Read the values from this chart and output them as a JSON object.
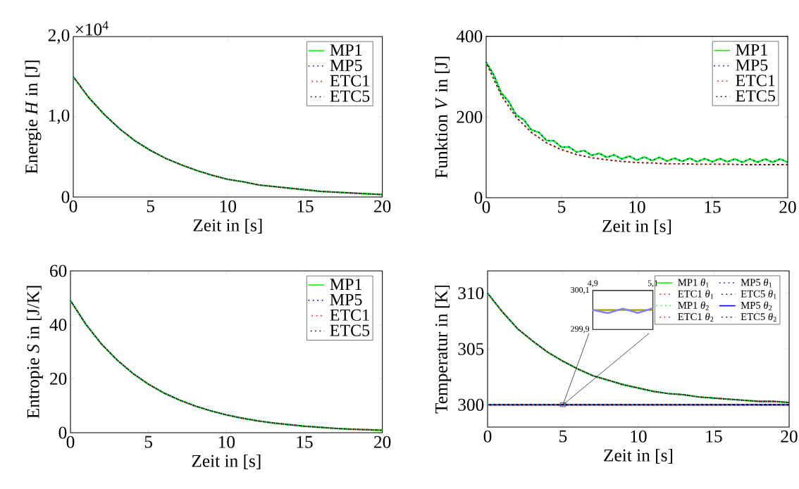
{
  "chart_data": [
    {
      "type": "line",
      "xlabel": "Zeit in [s]",
      "ylabel": "Energie *H* in [J]",
      "annotations": [
        "×10$^{4}$"
      ],
      "x": [
        0,
        1,
        2,
        3,
        4,
        5,
        6,
        7,
        8,
        9,
        10,
        11,
        12,
        13,
        14,
        15,
        16,
        17,
        18,
        19,
        20
      ],
      "xlim": [
        0,
        20
      ],
      "xticks": [
        0,
        5,
        10,
        15,
        20
      ],
      "ylim": [
        0,
        2
      ],
      "yticks": [
        0,
        {
          "value": 1,
          "label": "1,0"
        },
        {
          "value": 2,
          "label": "2,0"
        }
      ],
      "legend": "top right",
      "series": [
        {
          "name": "MP1",
          "color": "#00ff00",
          "line_style": "solid",
          "values": [
            1.5,
            1.24,
            1.03,
            0.85,
            0.7,
            0.58,
            0.48,
            0.4,
            0.33,
            0.27,
            0.22,
            0.19,
            0.15,
            0.13,
            0.11,
            0.09,
            0.07,
            0.06,
            0.05,
            0.04,
            0.03
          ]
        },
        {
          "name": "MP5",
          "color": "#0000ff",
          "line_style": "dotted",
          "values": [
            1.5,
            1.24,
            1.03,
            0.85,
            0.7,
            0.58,
            0.48,
            0.4,
            0.33,
            0.27,
            0.22,
            0.19,
            0.15,
            0.13,
            0.11,
            0.09,
            0.07,
            0.06,
            0.05,
            0.04,
            0.03
          ]
        },
        {
          "name": "ETC1",
          "color": "#ff0000",
          "line_style": "dotted",
          "values": [
            1.5,
            1.24,
            1.03,
            0.85,
            0.7,
            0.58,
            0.48,
            0.4,
            0.33,
            0.27,
            0.22,
            0.19,
            0.15,
            0.13,
            0.11,
            0.09,
            0.07,
            0.06,
            0.05,
            0.04,
            0.03
          ]
        },
        {
          "name": "ETC5",
          "color": "#000000",
          "line_style": "dotted",
          "values": [
            1.5,
            1.24,
            1.03,
            0.85,
            0.7,
            0.58,
            0.48,
            0.4,
            0.33,
            0.27,
            0.22,
            0.19,
            0.15,
            0.13,
            0.11,
            0.09,
            0.07,
            0.06,
            0.05,
            0.04,
            0.03
          ]
        }
      ]
    },
    {
      "type": "line",
      "xlabel": "Zeit in [s]",
      "ylabel": "Funktion *V* in [J]",
      "x": [
        0,
        1,
        2,
        3,
        4,
        5,
        6,
        7,
        8,
        9,
        10,
        11,
        12,
        13,
        14,
        15,
        16,
        17,
        18,
        19,
        20
      ],
      "xlim": [
        0,
        20
      ],
      "xticks": [
        0,
        5,
        10,
        15,
        20
      ],
      "ylim": [
        0,
        400
      ],
      "yticks": [
        0,
        200,
        400
      ],
      "legend": "top right",
      "series": [
        {
          "name": "MP1",
          "color": "#00ff00",
          "line_style": "solid",
          "x": [
            0,
            0.5,
            1,
            1.5,
            2,
            2.5,
            3,
            3.5,
            4,
            4.5,
            5,
            5.5,
            6,
            6.5,
            7,
            7.5,
            8,
            8.5,
            9,
            9.5,
            10,
            10.5,
            11,
            11.5,
            12,
            12.5,
            13,
            13.5,
            14,
            14.5,
            15,
            15.5,
            16,
            16.5,
            17,
            17.5,
            18,
            18.5,
            19,
            19.5,
            20
          ],
          "values": [
            336,
            305,
            260,
            238,
            205,
            193,
            168,
            162,
            142,
            141,
            125,
            126,
            113,
            117,
            105,
            110,
            100,
            106,
            96,
            103,
            93,
            101,
            92,
            100,
            91,
            98,
            90,
            98,
            89,
            97,
            89,
            97,
            89,
            96,
            88,
            96,
            88,
            96,
            88,
            96,
            88
          ]
        },
        {
          "name": "MP5",
          "color": "#0000ff",
          "line_style": "dotted",
          "x": [
            0,
            0.5,
            1,
            1.5,
            2,
            2.5,
            3,
            3.5,
            4,
            4.5,
            5,
            5.5,
            6,
            6.5,
            7,
            7.5,
            8,
            8.5,
            9,
            9.5,
            10,
            10.5,
            11,
            11.5,
            12,
            12.5,
            13,
            13.5,
            14,
            14.5,
            15,
            15.5,
            16,
            16.5,
            17,
            17.5,
            18,
            18.5,
            19,
            19.5,
            20
          ],
          "values": [
            336,
            305,
            260,
            238,
            205,
            193,
            168,
            162,
            142,
            141,
            125,
            126,
            113,
            117,
            105,
            110,
            100,
            106,
            96,
            103,
            93,
            101,
            92,
            100,
            91,
            98,
            90,
            98,
            89,
            97,
            89,
            97,
            89,
            96,
            88,
            96,
            88,
            96,
            88,
            96,
            88
          ]
        },
        {
          "name": "ETC1",
          "color": "#ff0000",
          "line_style": "dotted",
          "values": [
            335,
            254,
            199,
            162,
            136,
            119,
            107,
            99,
            94,
            90,
            87,
            86,
            84,
            84,
            83,
            83,
            83,
            82,
            82,
            82,
            82
          ]
        },
        {
          "name": "ETC5",
          "color": "#000000",
          "line_style": "dotted",
          "values": [
            335,
            254,
            199,
            162,
            136,
            119,
            107,
            99,
            94,
            90,
            87,
            86,
            84,
            84,
            83,
            83,
            83,
            82,
            82,
            82,
            82
          ]
        }
      ]
    },
    {
      "type": "line",
      "xlabel": "Zeit in [s]",
      "ylabel": "Entropie *S* in [J/K]",
      "x": [
        0,
        1,
        2,
        3,
        4,
        5,
        6,
        7,
        8,
        9,
        10,
        11,
        12,
        13,
        14,
        15,
        16,
        17,
        18,
        19,
        20
      ],
      "xlim": [
        0,
        20
      ],
      "xticks": [
        0,
        5,
        10,
        15,
        20
      ],
      "ylim": [
        0,
        60
      ],
      "yticks": [
        0,
        20,
        40,
        60
      ],
      "legend": "top right",
      "series": [
        {
          "name": "MP1",
          "color": "#00ff00",
          "line_style": "solid",
          "values": [
            49,
            40.1,
            32.8,
            26.9,
            22.0,
            18.0,
            14.7,
            12.1,
            9.9,
            8.1,
            6.6,
            5.4,
            4.4,
            3.6,
            3.0,
            2.4,
            2.0,
            1.6,
            1.3,
            1.1,
            0.9
          ]
        },
        {
          "name": "MP5",
          "color": "#0000ff",
          "line_style": "dotted",
          "values": [
            49,
            40.1,
            32.8,
            26.9,
            22.0,
            18.0,
            14.7,
            12.1,
            9.9,
            8.1,
            6.6,
            5.4,
            4.4,
            3.6,
            3.0,
            2.4,
            2.0,
            1.6,
            1.3,
            1.1,
            0.9
          ]
        },
        {
          "name": "ETC1",
          "color": "#ff0000",
          "line_style": "dotted",
          "values": [
            49,
            40.1,
            32.8,
            26.9,
            22.0,
            18.0,
            14.7,
            12.1,
            9.9,
            8.1,
            6.6,
            5.4,
            4.4,
            3.6,
            3.0,
            2.4,
            2.0,
            1.6,
            1.3,
            1.1,
            0.9
          ]
        },
        {
          "name": "ETC5",
          "color": "#000000",
          "line_style": "dotted",
          "values": [
            49,
            40.1,
            32.8,
            26.9,
            22.0,
            18.0,
            14.7,
            12.1,
            9.9,
            8.1,
            6.6,
            5.4,
            4.4,
            3.6,
            3.0,
            2.4,
            2.0,
            1.6,
            1.3,
            1.1,
            0.9
          ]
        }
      ]
    },
    {
      "type": "line",
      "xlabel": "Zeit in [s]",
      "ylabel": "Temperatur in [K]",
      "x": [
        0,
        1,
        2,
        3,
        4,
        5,
        6,
        7,
        8,
        9,
        10,
        11,
        12,
        13,
        14,
        15,
        16,
        17,
        18,
        19,
        20
      ],
      "xlim": [
        0,
        20
      ],
      "xticks": [
        0,
        5,
        10,
        15,
        20
      ],
      "ylim": [
        298,
        312
      ],
      "yticks": [
        300,
        305,
        310
      ],
      "legend": "top right",
      "series": [
        {
          "name": "MP1 *θ*$_{1}$",
          "color": "#00ff00",
          "line_style": "solid",
          "values": [
            310,
            308.3,
            306.8,
            305.7,
            304.7,
            303.9,
            303.2,
            302.6,
            302.2,
            301.8,
            301.5,
            301.2,
            301.0,
            300.9,
            300.7,
            300.6,
            300.5,
            300.4,
            300.3,
            300.3,
            300.2
          ]
        },
        {
          "name": "MP5 *θ*$_{1}$",
          "color": "#0000ff",
          "line_style": "dotted",
          "values": [
            310,
            308.3,
            306.8,
            305.7,
            304.7,
            303.9,
            303.2,
            302.6,
            302.2,
            301.8,
            301.5,
            301.2,
            301.0,
            300.9,
            300.7,
            300.6,
            300.5,
            300.4,
            300.3,
            300.3,
            300.2
          ]
        },
        {
          "name": "ETC1 *θ*$_{1}$",
          "color": "#ff0000",
          "line_style": "dotted",
          "values": [
            310,
            308.3,
            306.8,
            305.7,
            304.7,
            303.9,
            303.2,
            302.6,
            302.2,
            301.8,
            301.5,
            301.2,
            301.0,
            300.9,
            300.7,
            300.6,
            300.5,
            300.4,
            300.3,
            300.3,
            300.2
          ]
        },
        {
          "name": "ETC5 *θ*$_{1}$",
          "color": "#000000",
          "line_style": "dotted",
          "values": [
            310,
            308.3,
            306.8,
            305.7,
            304.7,
            303.9,
            303.2,
            302.6,
            302.2,
            301.8,
            301.5,
            301.2,
            301.0,
            300.9,
            300.7,
            300.6,
            300.5,
            300.4,
            300.3,
            300.3,
            300.2
          ]
        },
        {
          "name": "MP1 *θ*$_{2}$",
          "color": "#00ff00",
          "line_style": "dotted",
          "values": [
            300,
            300,
            300,
            300,
            300,
            300,
            300,
            300,
            300,
            300,
            300,
            300,
            300,
            300,
            300,
            300,
            300,
            300,
            300,
            300,
            300
          ]
        },
        {
          "name": "MP5 *θ*$_{2}$",
          "color": "#0000ff",
          "line_style": "solid",
          "values": [
            300,
            300,
            300,
            300,
            300,
            300,
            300,
            300,
            300,
            300,
            300,
            300,
            300,
            300,
            300,
            300,
            300,
            300,
            300,
            300,
            300
          ]
        },
        {
          "name": "ETC1 *θ*$_{2}$",
          "color": "#ff0000",
          "line_style": "dotted",
          "values": [
            300,
            300,
            300,
            300,
            300,
            300,
            300,
            300,
            300,
            300,
            300,
            300,
            300,
            300,
            300,
            300,
            300,
            300,
            300,
            300,
            300
          ]
        },
        {
          "name": "ETC5 *θ*$_{2}$",
          "color": "#000000",
          "line_style": "dotted",
          "values": [
            300,
            300,
            300,
            300,
            300,
            300,
            300,
            300,
            300,
            300,
            300,
            300,
            300,
            300,
            300,
            300,
            300,
            300,
            300,
            300,
            300
          ]
        }
      ]
    },
    {
      "type": "line",
      "xlim": [
        4.9,
        5.1
      ],
      "xticks": [
        {
          "value": 4.9,
          "label": "4,9"
        },
        {
          "value": 5.1,
          "label": "5,1"
        }
      ],
      "ylim": [
        299.9,
        300.1
      ],
      "yticks": [
        {
          "value": 299.9,
          "label": "299,9"
        },
        {
          "value": 300.1,
          "label": "300,1"
        }
      ],
      "series": [
        {
          "color": "#a0a000",
          "line_style": "solid",
          "x": [
            4.9,
            5.1
          ],
          "values": [
            300,
            300
          ]
        },
        {
          "color": "#7f7fff",
          "line_style": "solid",
          "x": [
            4.9,
            4.95,
            5.0,
            5.05,
            5.1
          ],
          "values": [
            300.0,
            299.984,
            300.007,
            299.985,
            300.009
          ]
        }
      ]
    }
  ]
}
